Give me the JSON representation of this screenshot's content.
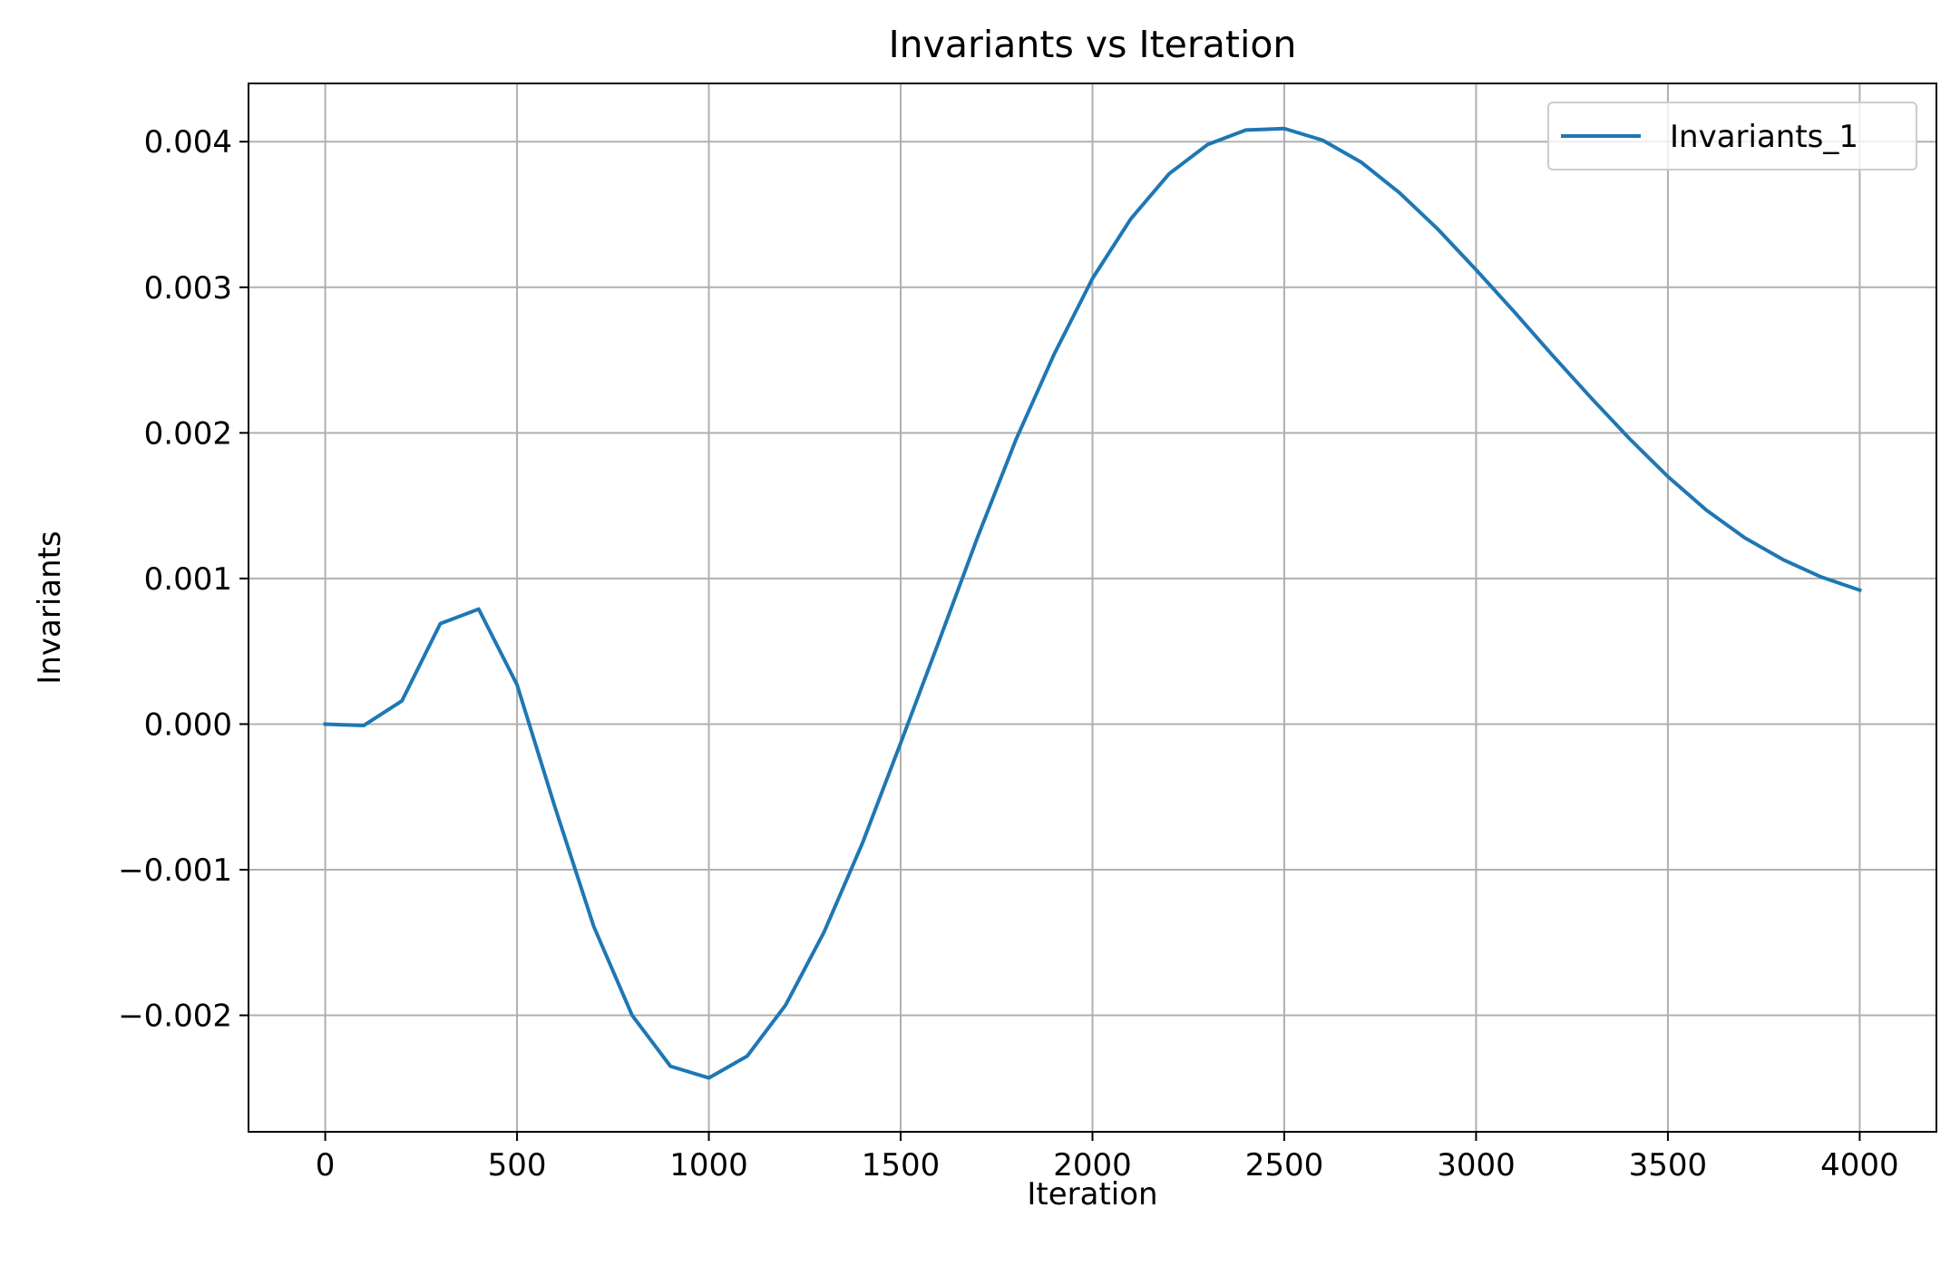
{
  "chart_data": {
    "type": "line",
    "title": "Invariants vs Iteration",
    "xlabel": "Iteration",
    "ylabel": "Invariants",
    "xlim": [
      -200,
      4200
    ],
    "ylim": [
      -0.0028,
      0.0044
    ],
    "xticks": [
      0,
      500,
      1000,
      1500,
      2000,
      2500,
      3000,
      3500,
      4000
    ],
    "xtick_labels": [
      "0",
      "500",
      "1000",
      "1500",
      "2000",
      "2500",
      "3000",
      "3500",
      "4000"
    ],
    "yticks": [
      -0.002,
      -0.001,
      0.0,
      0.001,
      0.002,
      0.003,
      0.004
    ],
    "ytick_labels": [
      "−0.002",
      "−0.001",
      "0.000",
      "0.001",
      "0.002",
      "0.003",
      "0.004"
    ],
    "grid": true,
    "legend_position": "top-right",
    "series": [
      {
        "name": "Invariants_1",
        "color": "#1f77b4",
        "x": [
          0,
          100,
          200,
          300,
          400,
          500,
          600,
          700,
          800,
          900,
          1000,
          1100,
          1200,
          1300,
          1400,
          1500,
          1600,
          1700,
          1800,
          1900,
          2000,
          2100,
          2200,
          2300,
          2400,
          2500,
          2600,
          2700,
          2800,
          2900,
          3000,
          3100,
          3200,
          3300,
          3400,
          3500,
          3600,
          3700,
          3800,
          3900,
          4000
        ],
        "y": [
          0.0,
          -1e-05,
          0.00016,
          0.00069,
          0.00079,
          0.00027,
          -0.00058,
          -0.00139,
          -0.002,
          -0.00235,
          -0.00243,
          -0.00228,
          -0.00193,
          -0.00143,
          -0.00082,
          -0.00013,
          0.00057,
          0.00128,
          0.00195,
          0.00254,
          0.00306,
          0.00347,
          0.00378,
          0.00398,
          0.00408,
          0.00409,
          0.00401,
          0.00386,
          0.00365,
          0.0034,
          0.00312,
          0.00283,
          0.00253,
          0.00224,
          0.00196,
          0.0017,
          0.00147,
          0.00128,
          0.00113,
          0.00101,
          0.00092
        ]
      }
    ]
  }
}
